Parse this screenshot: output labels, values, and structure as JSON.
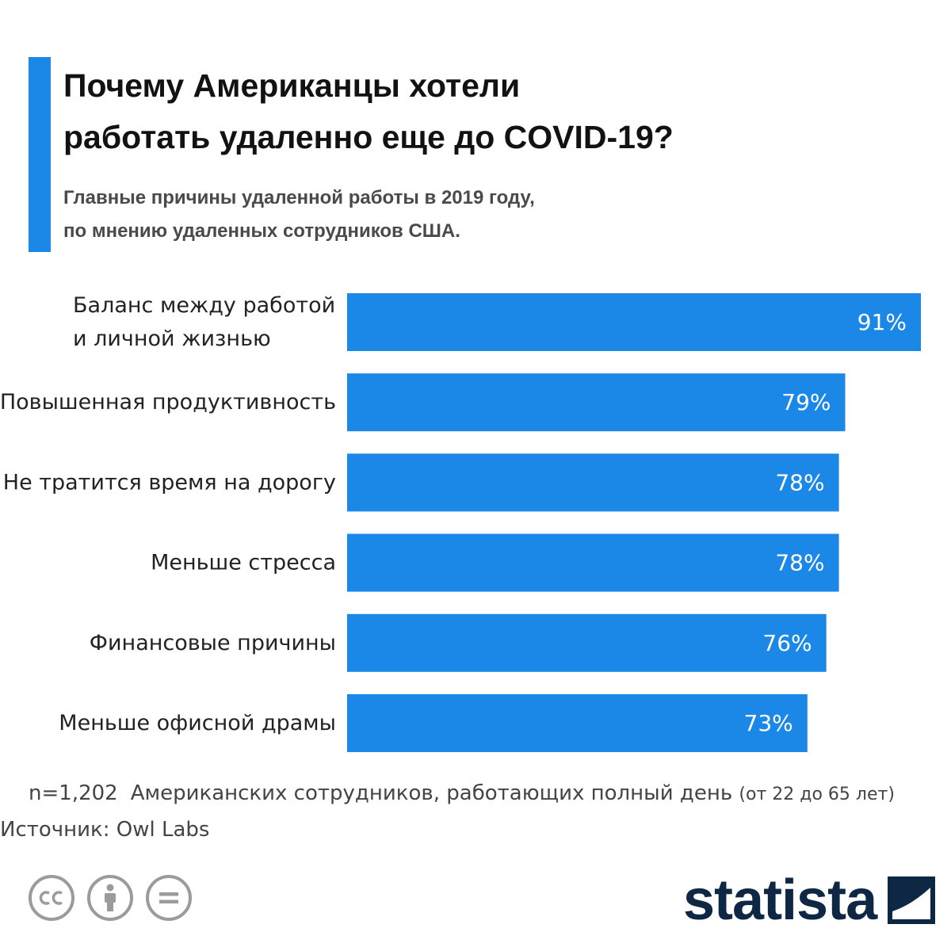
{
  "header": {
    "title_line1": "Почему Американцы хотели",
    "title_line2": "работать удаленно еще до COVID-19?",
    "subtitle_line1": "Главные причины удаленной работы в 2019 году,",
    "subtitle_line2": "по мнению удаленных сотрудников США.",
    "accent_color": "#1b87e6"
  },
  "chart_data": {
    "type": "bar",
    "orientation": "horizontal",
    "categories": [
      [
        "Баланс между работой",
        "и личной жизнью"
      ],
      [
        "Повышенная продуктивность"
      ],
      [
        "Не тратится время на дорогу"
      ],
      [
        "Меньше стресса"
      ],
      [
        "Финансовые причины"
      ],
      [
        "Меньше офисной драмы"
      ]
    ],
    "values": [
      91,
      79,
      78,
      78,
      76,
      73
    ],
    "value_labels": [
      "91%",
      "79%",
      "78%",
      "78%",
      "76%",
      "73%"
    ],
    "xlim": [
      0,
      91
    ],
    "unit": "%",
    "bar_color": "#1b87e6",
    "grid": false,
    "legend": "none"
  },
  "footer": {
    "sample_size": "n=1,202",
    "sample_desc": "Американских сотрудников, работающих полный день",
    "age_range": "(от 22 до 65 лет)",
    "source": "Источник: Owl Labs"
  },
  "license_icons": [
    "cc-icon",
    "attribution-icon",
    "no-derivatives-icon"
  ],
  "brand": {
    "name": "statista",
    "color": "#0e2744"
  }
}
